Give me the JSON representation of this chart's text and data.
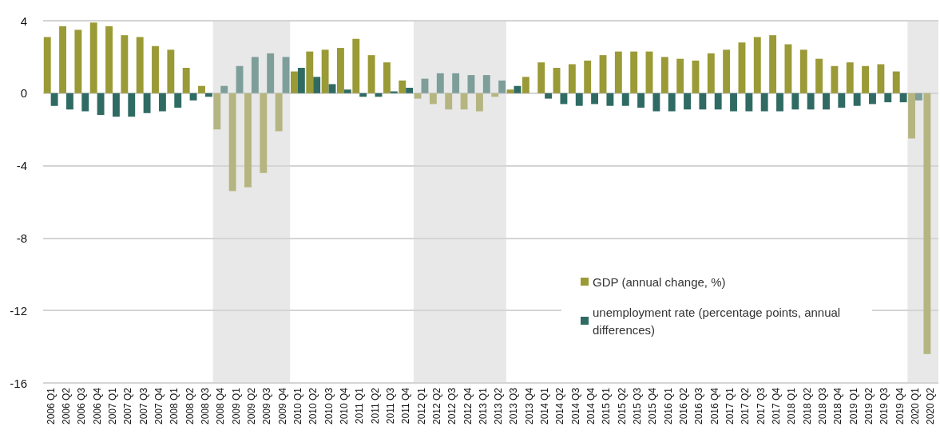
{
  "chart_data": {
    "type": "bar",
    "categories": [
      "2006 Q1",
      "2006 Q2",
      "2006 Q3",
      "2006 Q4",
      "2007 Q1",
      "2007 Q2",
      "2007 Q3",
      "2007 Q4",
      "2008 Q1",
      "2008 Q2",
      "2008 Q3",
      "2008 Q4",
      "2009 Q1",
      "2009 Q2",
      "2009 Q3",
      "2009 Q4",
      "2010 Q1",
      "2010 Q2",
      "2010 Q3",
      "2010 Q4",
      "2011 Q1",
      "2011 Q2",
      "2011 Q3",
      "2011 Q4",
      "2012 Q1",
      "2012 Q2",
      "2012 Q3",
      "2012 Q4",
      "2013 Q1",
      "2013 Q2",
      "2013 Q3",
      "2013 Q4",
      "2014 Q1",
      "2014 Q2",
      "2014 Q3",
      "2014 Q4",
      "2015 Q1",
      "2015 Q2",
      "2015 Q3",
      "2015 Q4",
      "2016 Q1",
      "2016 Q2",
      "2016 Q3",
      "2016 Q4",
      "2017 Q1",
      "2017 Q2",
      "2017 Q3",
      "2017 Q4",
      "2018 Q1",
      "2018 Q2",
      "2018 Q3",
      "2018 Q4",
      "2019 Q1",
      "2019 Q2",
      "2019 Q3",
      "2019 Q4",
      "2020 Q1",
      "2020 Q2"
    ],
    "series": [
      {
        "name": "GDP (annual change, %)",
        "color": "#9a9a36",
        "values": [
          3.1,
          3.7,
          3.5,
          3.9,
          3.7,
          3.2,
          3.1,
          2.6,
          2.4,
          1.4,
          0.4,
          -2.0,
          -5.4,
          -5.2,
          -4.4,
          -2.1,
          1.2,
          2.3,
          2.4,
          2.5,
          3.0,
          2.1,
          1.7,
          0.7,
          -0.3,
          -0.6,
          -0.9,
          -0.9,
          -1.0,
          -0.2,
          0.2,
          0.9,
          1.7,
          1.4,
          1.6,
          1.8,
          2.1,
          2.3,
          2.3,
          2.3,
          2.0,
          1.9,
          1.8,
          2.2,
          2.4,
          2.8,
          3.1,
          3.2,
          2.7,
          2.4,
          1.9,
          1.5,
          1.7,
          1.5,
          1.6,
          1.2,
          -2.5,
          -14.4
        ],
        "colors": [
          "#9a9a36",
          "#9a9a36",
          "#9a9a36",
          "#9a9a36",
          "#9a9a36",
          "#9a9a36",
          "#9a9a36",
          "#9a9a36",
          "#9a9a36",
          "#9a9a36",
          "#9a9a36",
          "#b5b581",
          "#b5b581",
          "#b5b581",
          "#b5b581",
          "#b5b581",
          "#9a9a36",
          "#9a9a36",
          "#9a9a36",
          "#9a9a36",
          "#9a9a36",
          "#9a9a36",
          "#9a9a36",
          "#9a9a36",
          "#b5b581",
          "#b5b581",
          "#b5b581",
          "#b5b581",
          "#b5b581",
          "#b5b581",
          "#9a9a36",
          "#9a9a36",
          "#9a9a36",
          "#9a9a36",
          "#9a9a36",
          "#9a9a36",
          "#9a9a36",
          "#9a9a36",
          "#9a9a36",
          "#9a9a36",
          "#9a9a36",
          "#9a9a36",
          "#9a9a36",
          "#9a9a36",
          "#9a9a36",
          "#9a9a36",
          "#9a9a36",
          "#9a9a36",
          "#9a9a36",
          "#9a9a36",
          "#9a9a36",
          "#9a9a36",
          "#9a9a36",
          "#9a9a36",
          "#9a9a36",
          "#9a9a36",
          "#b5b581",
          "#b5b581"
        ]
      },
      {
        "name": "unemployment rate (percentage points, annual differences)",
        "color": "#2f6b63",
        "values": [
          -0.7,
          -0.9,
          -1.0,
          -1.2,
          -1.3,
          -1.3,
          -1.1,
          -1.0,
          -0.8,
          -0.4,
          -0.2,
          0.4,
          1.5,
          2.0,
          2.2,
          2.0,
          1.4,
          0.9,
          0.5,
          0.2,
          -0.2,
          -0.2,
          0.1,
          0.3,
          0.8,
          1.1,
          1.1,
          1.0,
          1.0,
          0.7,
          0.4,
          0,
          -0.3,
          -0.6,
          -0.7,
          -0.6,
          -0.7,
          -0.7,
          -0.8,
          -1.0,
          -1.0,
          -0.9,
          -0.9,
          -0.9,
          -1.0,
          -1.0,
          -1.0,
          -1.0,
          -0.9,
          -0.9,
          -0.9,
          -0.8,
          -0.7,
          -0.6,
          -0.5,
          -0.5,
          -0.4,
          null
        ],
        "colors": [
          "#2f6b63",
          "#2f6b63",
          "#2f6b63",
          "#2f6b63",
          "#2f6b63",
          "#2f6b63",
          "#2f6b63",
          "#2f6b63",
          "#2f6b63",
          "#2f6b63",
          "#2f6b63",
          "#7e9e9a",
          "#7e9e9a",
          "#7e9e9a",
          "#7e9e9a",
          "#7e9e9a",
          "#2f6b63",
          "#2f6b63",
          "#2f6b63",
          "#2f6b63",
          "#2f6b63",
          "#2f6b63",
          "#2f6b63",
          "#2f6b63",
          "#7e9e9a",
          "#7e9e9a",
          "#7e9e9a",
          "#7e9e9a",
          "#7e9e9a",
          "#7e9e9a",
          "#2f6b63",
          "#2f6b63",
          "#2f6b63",
          "#2f6b63",
          "#2f6b63",
          "#2f6b63",
          "#2f6b63",
          "#2f6b63",
          "#2f6b63",
          "#2f6b63",
          "#2f6b63",
          "#2f6b63",
          "#2f6b63",
          "#2f6b63",
          "#2f6b63",
          "#2f6b63",
          "#2f6b63",
          "#2f6b63",
          "#2f6b63",
          "#2f6b63",
          "#2f6b63",
          "#2f6b63",
          "#2f6b63",
          "#2f6b63",
          "#2f6b63",
          "#2f6b63",
          "#7e9e9a",
          "#7e9e9a"
        ]
      }
    ],
    "ylim": [
      -16,
      4
    ],
    "yticks": [
      -16,
      -12,
      -8,
      -4,
      0,
      4
    ],
    "grid": "y",
    "legend": "bottom right",
    "bands": [
      {
        "axis": "x",
        "from": "2008 Q4",
        "to": "2009 Q4",
        "color": "#e8e8e8"
      },
      {
        "axis": "x",
        "from": "2012 Q1",
        "to": "2013 Q2",
        "color": "#e8e8e8"
      },
      {
        "axis": "x",
        "from": "2020 Q1",
        "to": "2020 Q2",
        "color": "#e8e8e8"
      }
    ]
  }
}
